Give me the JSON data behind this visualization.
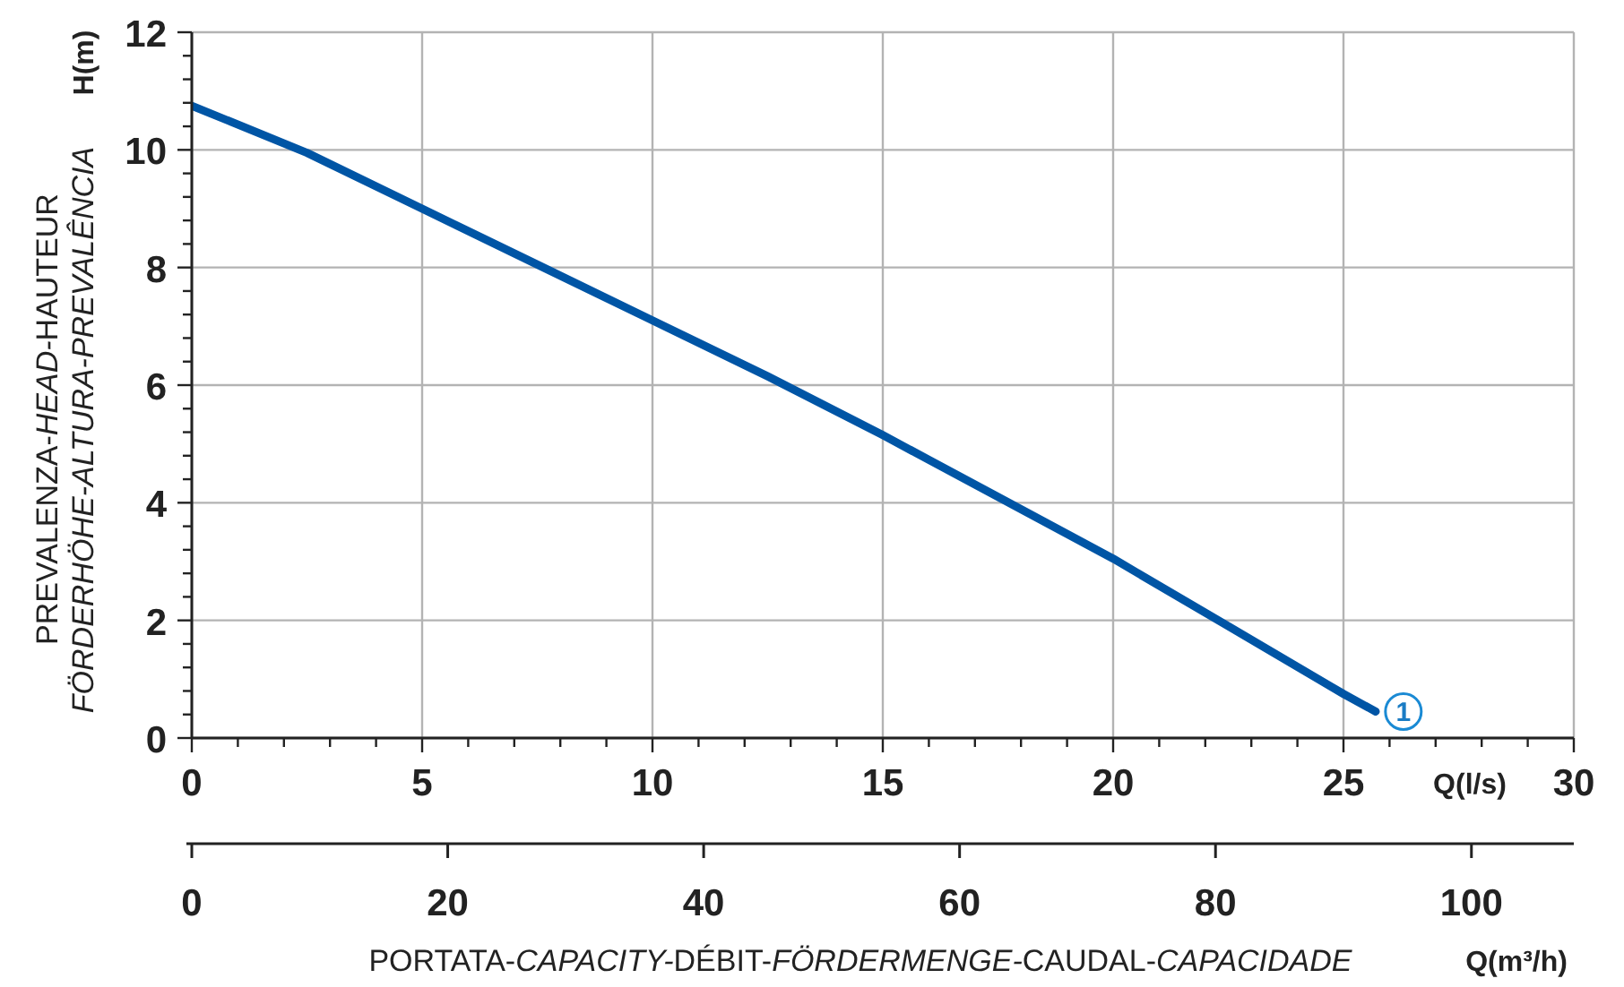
{
  "chart_data": {
    "type": "line",
    "ylabel": "H(m)",
    "xlabel": "Q(l/s)",
    "x2label": "Q(m³/h)",
    "annotations": [
      "PREVALENZA-HEAD-HAUTEUR",
      "FÖRDERHÖHE-ALTURA-PREVALÊNCIA",
      "PORTATA-CAPACITY-DÉBIT-FÖRDERMENGE-CAUDAL-CAPACIDADE",
      {
        "text": "1",
        "x": 26.3,
        "y": 0.45
      }
    ],
    "x": [
      0,
      2.5,
      5,
      7.5,
      10,
      12.5,
      15,
      17.5,
      20,
      22.5,
      25,
      25.7
    ],
    "series": [
      {
        "color": "#0055a5",
        "values": [
          10.75,
          9.95,
          9.0,
          8.05,
          7.1,
          6.15,
          5.15,
          4.1,
          3.05,
          1.9,
          0.75,
          0.45
        ]
      }
    ],
    "xlim": [
      0,
      30
    ],
    "xticks": [
      0,
      {
        "value": 1,
        "label": null
      },
      {
        "value": 2,
        "label": null
      },
      {
        "value": 3,
        "label": null
      },
      {
        "value": 4,
        "label": null
      },
      5,
      {
        "value": 6,
        "label": null
      },
      {
        "value": 7,
        "label": null
      },
      {
        "value": 8,
        "label": null
      },
      {
        "value": 9,
        "label": null
      },
      10,
      {
        "value": 11,
        "label": null
      },
      {
        "value": 12,
        "label": null
      },
      {
        "value": 13,
        "label": null
      },
      {
        "value": 14,
        "label": null
      },
      15,
      {
        "value": 16,
        "label": null
      },
      {
        "value": 17,
        "label": null
      },
      {
        "value": 18,
        "label": null
      },
      {
        "value": 19,
        "label": null
      },
      20,
      {
        "value": 21,
        "label": null
      },
      {
        "value": 22,
        "label": null
      },
      {
        "value": 23,
        "label": null
      },
      {
        "value": 24,
        "label": null
      },
      25,
      {
        "value": 26,
        "label": null
      },
      {
        "value": 27,
        "label": null
      },
      {
        "value": 28,
        "label": null
      },
      {
        "value": 29,
        "label": null
      },
      30
    ],
    "x2lim": [
      0,
      108
    ],
    "x2ticks": [
      0,
      20,
      40,
      60,
      80,
      100
    ],
    "ylim": [
      0,
      12
    ],
    "yticks": [
      0,
      {
        "value": 0.4,
        "label": null
      },
      {
        "value": 0.8,
        "label": null
      },
      {
        "value": 1.2,
        "label": null
      },
      {
        "value": 1.6,
        "label": null
      },
      2,
      {
        "value": 2.4,
        "label": null
      },
      {
        "value": 2.8,
        "label": null
      },
      {
        "value": 3.2,
        "label": null
      },
      {
        "value": 3.6,
        "label": null
      },
      4,
      {
        "value": 4.4,
        "label": null
      },
      {
        "value": 4.8,
        "label": null
      },
      {
        "value": 5.2,
        "label": null
      },
      {
        "value": 5.6,
        "label": null
      },
      6,
      {
        "value": 6.4,
        "label": null
      },
      {
        "value": 6.8,
        "label": null
      },
      {
        "value": 7.2,
        "label": null
      },
      {
        "value": 7.6,
        "label": null
      },
      8,
      {
        "value": 8.4,
        "label": null
      },
      {
        "value": 8.8,
        "label": null
      },
      {
        "value": 9.2,
        "label": null
      },
      {
        "value": 9.6,
        "label": null
      },
      10,
      {
        "value": 10.4,
        "label": null
      },
      {
        "value": 10.8,
        "label": null
      },
      {
        "value": 11.2,
        "label": null
      },
      {
        "value": 11.6,
        "label": null
      },
      12
    ],
    "grid": true
  }
}
